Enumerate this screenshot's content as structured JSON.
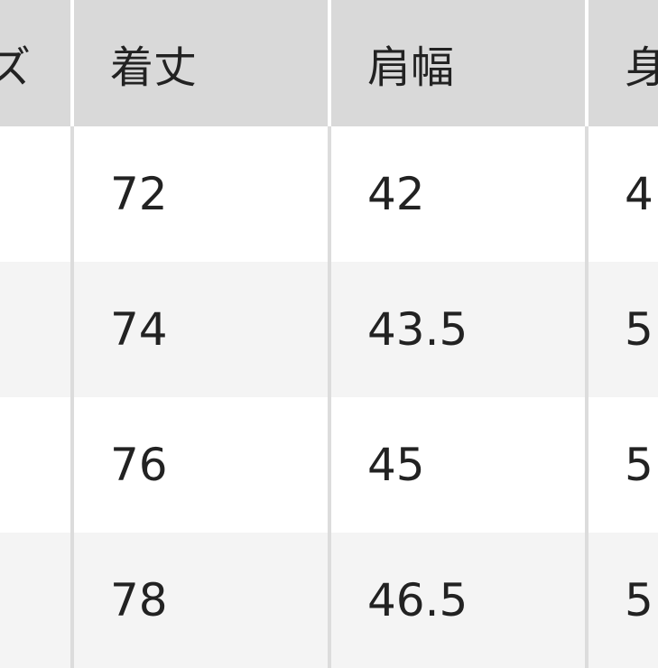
{
  "table": {
    "headers": [
      "ズ",
      "着丈",
      "肩幅",
      "身"
    ],
    "rows": [
      [
        "",
        "72",
        "42",
        "4"
      ],
      [
        "",
        "74",
        "43.5",
        "5"
      ],
      [
        "",
        "76",
        "45",
        "5"
      ],
      [
        "",
        "78",
        "46.5",
        "5"
      ]
    ]
  }
}
